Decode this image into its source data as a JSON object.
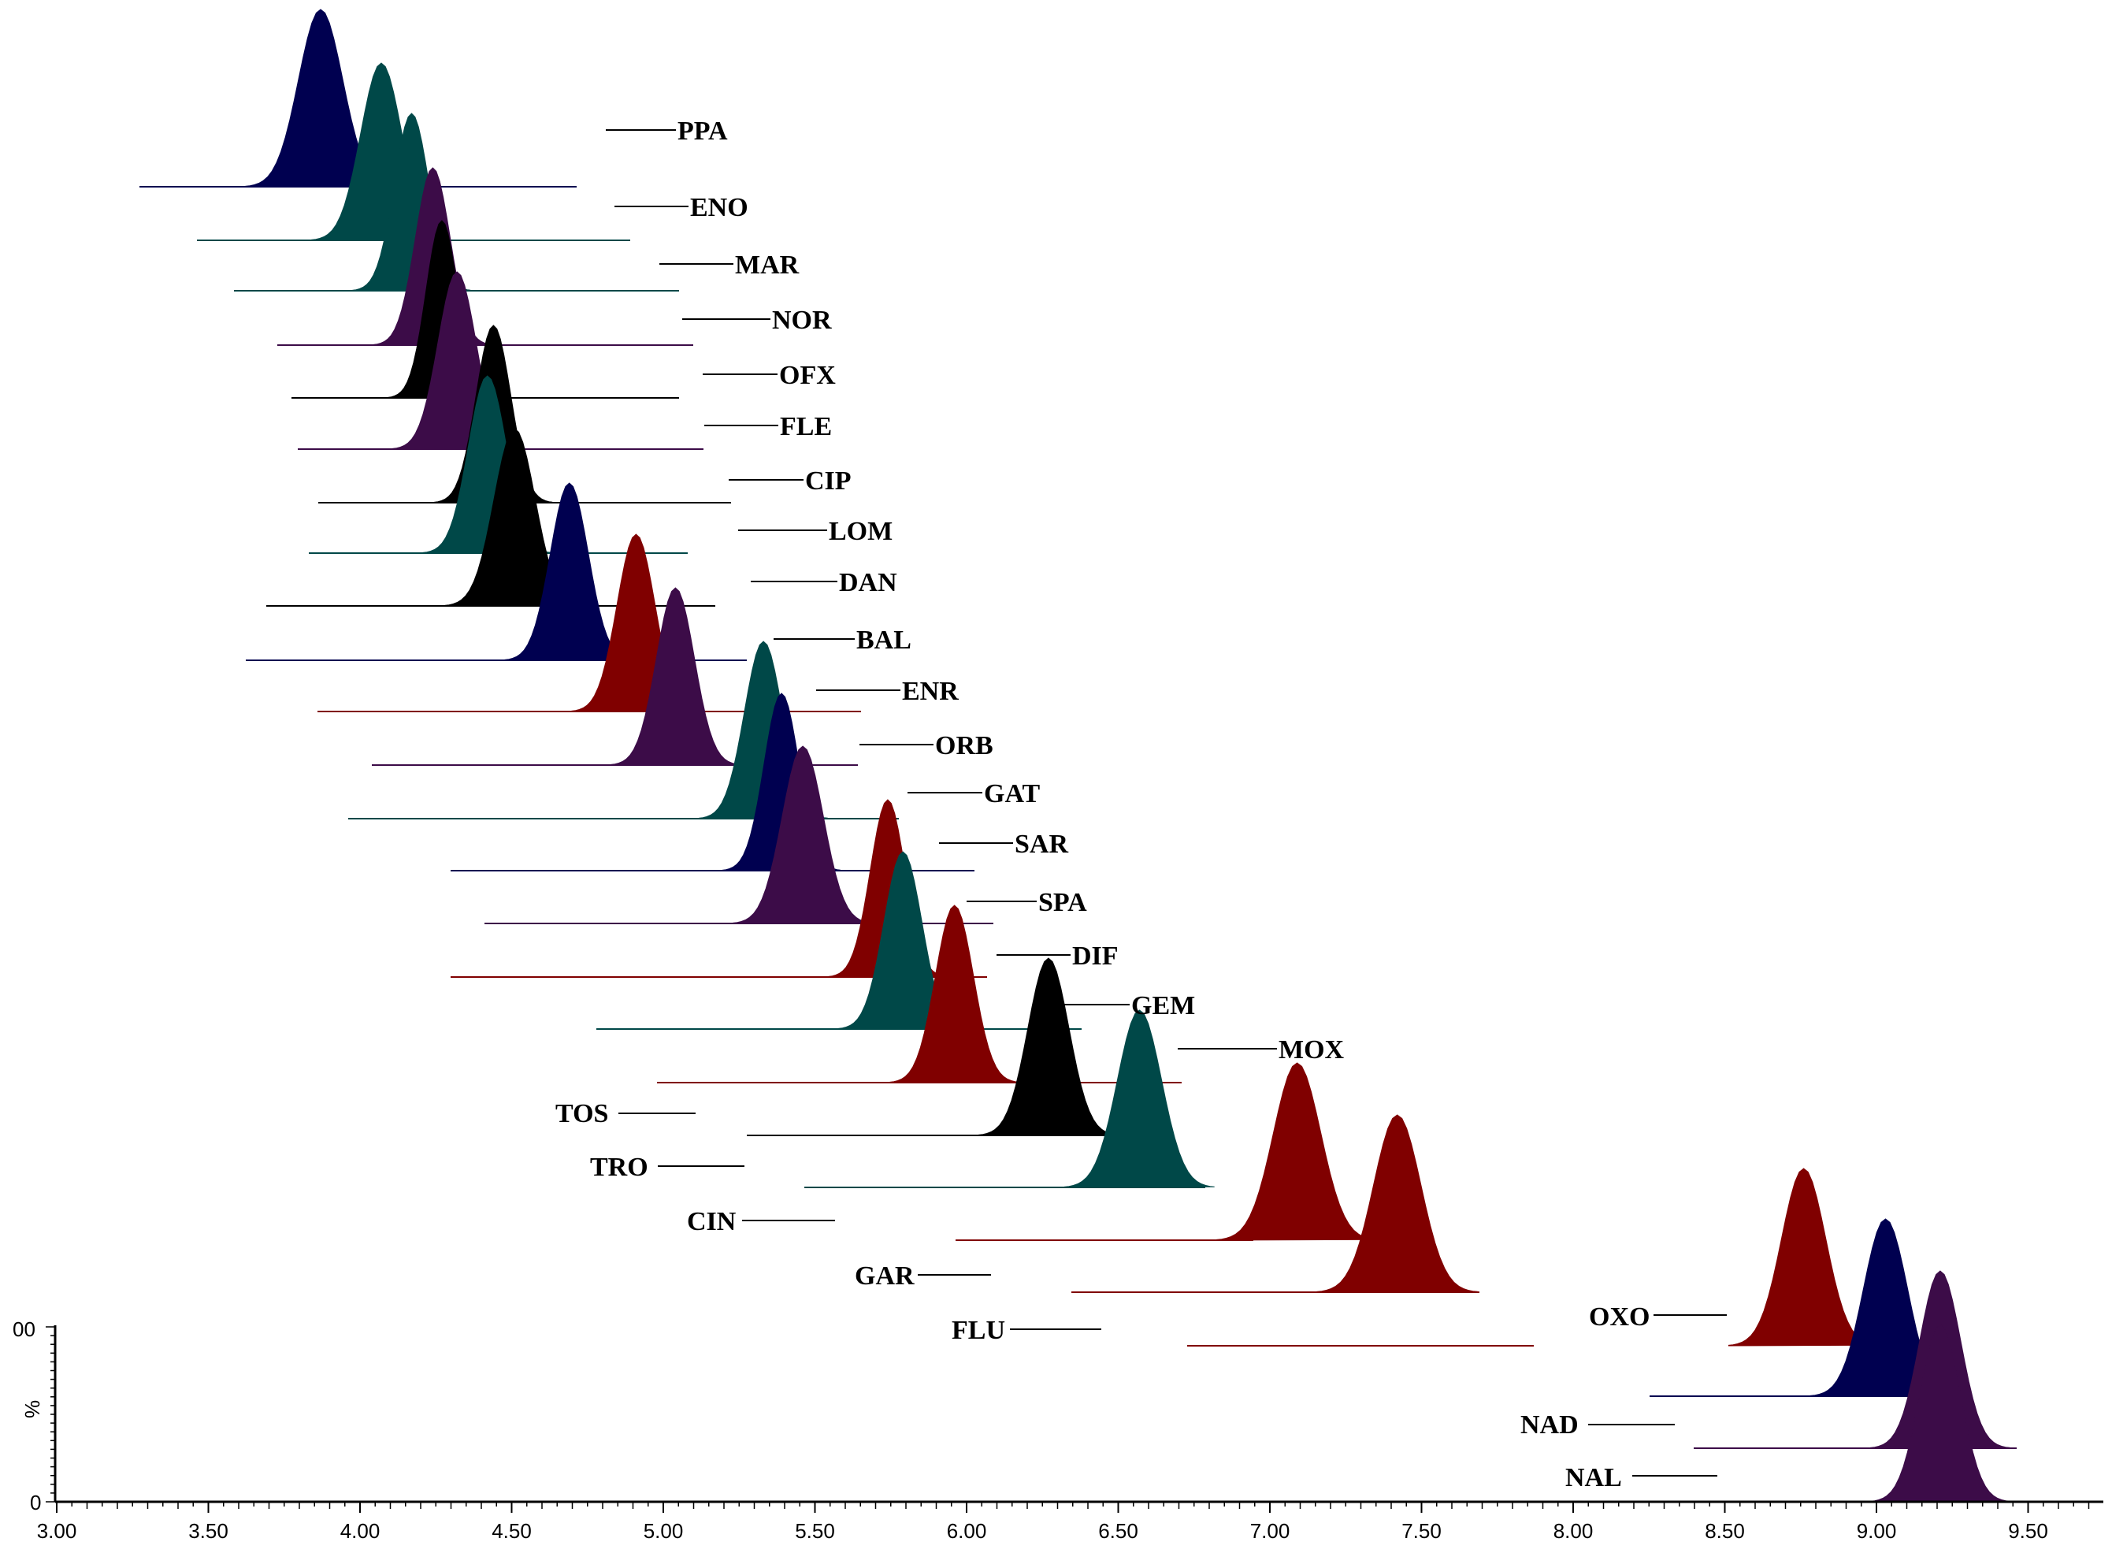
{
  "chart_data": {
    "type": "line",
    "title": "",
    "xlabel": "",
    "ylabel": "%",
    "xlim": [
      3.0,
      9.8
    ],
    "x_ticks": [
      "3.00",
      "3.50",
      "4.00",
      "4.50",
      "5.00",
      "5.50",
      "6.00",
      "6.50",
      "7.00",
      "7.50",
      "8.00",
      "8.50",
      "9.00",
      "9.50"
    ],
    "y_ticks": [
      "00",
      "0"
    ],
    "colors": {
      "navy": "#000050",
      "teal": "#004848",
      "purple": "#3c0c48",
      "black": "#000000",
      "maroon": "#800000"
    },
    "series": [
      {
        "name": "PPA",
        "rt": 3.87,
        "color": "navy"
      },
      {
        "name": "ENO",
        "rt": 4.07,
        "color": "teal"
      },
      {
        "name": "MAR",
        "rt": 4.17,
        "color": "teal"
      },
      {
        "name": "NOR",
        "rt": 4.24,
        "color": "purple"
      },
      {
        "name": "OFX",
        "rt": 4.27,
        "color": "black"
      },
      {
        "name": "FLE",
        "rt": 4.32,
        "color": "purple"
      },
      {
        "name": "CIP",
        "rt": 4.44,
        "color": "black"
      },
      {
        "name": "LOM",
        "rt": 4.42,
        "color": "teal"
      },
      {
        "name": "DAN",
        "rt": 4.51,
        "color": "black"
      },
      {
        "name": "BAL",
        "rt": 4.69,
        "color": "navy"
      },
      {
        "name": "ENR",
        "rt": 4.91,
        "color": "maroon"
      },
      {
        "name": "ORB",
        "rt": 5.04,
        "color": "purple"
      },
      {
        "name": "GAT",
        "rt": 5.33,
        "color": "teal"
      },
      {
        "name": "SAR",
        "rt": 5.39,
        "color": "navy"
      },
      {
        "name": "SPA",
        "rt": 5.46,
        "color": "purple"
      },
      {
        "name": "DIF",
        "rt": 5.74,
        "color": "maroon"
      },
      {
        "name": "GEM",
        "rt": 5.79,
        "color": "teal"
      },
      {
        "name": "MOX",
        "rt": 5.96,
        "color": "maroon"
      },
      {
        "name": "TOS",
        "rt": 6.27,
        "color": "black"
      },
      {
        "name": "TRO",
        "rt": 6.57,
        "color": "teal"
      },
      {
        "name": "CIN",
        "rt": 7.09,
        "color": "maroon"
      },
      {
        "name": "GAR",
        "rt": 7.42,
        "color": "maroon"
      },
      {
        "name": "FLU",
        "rt": 8.76,
        "color": "maroon"
      },
      {
        "name": "OXO",
        "rt": 9.03,
        "color": "navy"
      },
      {
        "name": "NAD",
        "rt": 9.21,
        "color": "purple"
      },
      {
        "name": "NAL",
        "rt": 9.21,
        "color": "purple"
      }
    ],
    "labels": [
      "PPA",
      "ENO",
      "MAR",
      "NOR",
      "OFX",
      "FLE",
      "CIP",
      "LOM",
      "DAN",
      "BAL",
      "ENR",
      "ORB",
      "GAT",
      "SAR",
      "SPA",
      "DIF",
      "GEM",
      "MOX",
      "TOS",
      "TRO",
      "CIN",
      "GAR",
      "FLU",
      "OXO",
      "NAD",
      "NAL"
    ]
  }
}
